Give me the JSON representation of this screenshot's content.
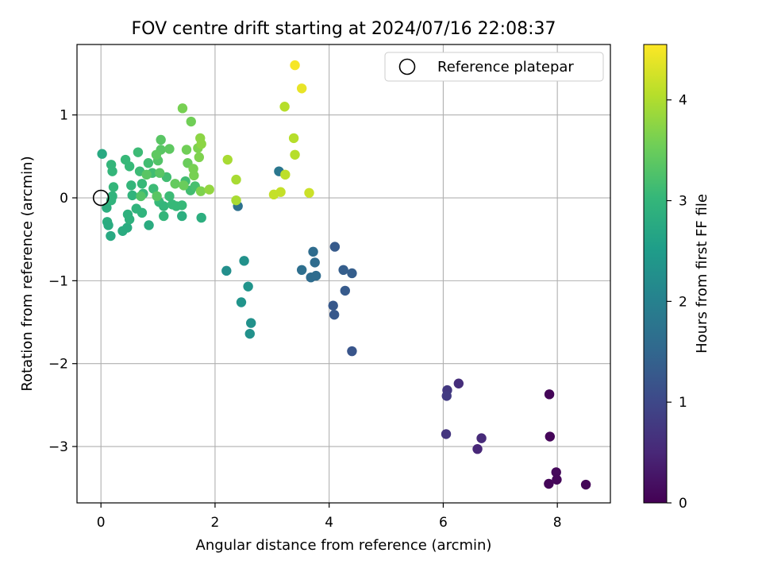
{
  "chart_data": {
    "type": "scatter",
    "title": "FOV centre drift starting at 2024/07/16 22:08:37",
    "xlabel": "Angular distance from reference (arcmin)",
    "ylabel": "Rotation from reference (arcmin)",
    "xlim": [
      -0.42,
      8.93
    ],
    "ylim": [
      -3.68,
      1.85
    ],
    "xticks": [
      0,
      2,
      4,
      6,
      8
    ],
    "yticks": [
      -3,
      -2,
      -1,
      0,
      1
    ],
    "xtick_labels": [
      "0",
      "2",
      "4",
      "6",
      "8"
    ],
    "ytick_labels": [
      "−3",
      "−2",
      "−1",
      "0",
      "1"
    ],
    "grid": true,
    "legend": {
      "position": "top-right",
      "entries": [
        "Reference platepar"
      ]
    },
    "reference_point": {
      "x": 0,
      "y": 0,
      "label": "Reference platepar"
    },
    "colorbar": {
      "label": "Hours from first FF file",
      "colormap": "viridis",
      "range": [
        0,
        4.55
      ],
      "ticks": [
        0,
        1,
        2,
        3,
        4
      ],
      "tick_labels": [
        "0",
        "1",
        "2",
        "3",
        "4"
      ]
    },
    "series": [
      {
        "color_by": "Hours from first FF file",
        "points": [
          {
            "x": 7.86,
            "y": -2.37,
            "c": 0.05
          },
          {
            "x": 7.87,
            "y": -2.88,
            "c": 0.07
          },
          {
            "x": 7.85,
            "y": -3.45,
            "c": 0.05
          },
          {
            "x": 7.98,
            "y": -3.31,
            "c": 0.1
          },
          {
            "x": 7.99,
            "y": -3.4,
            "c": 0.08
          },
          {
            "x": 8.5,
            "y": -3.46,
            "c": 0.05
          },
          {
            "x": 6.27,
            "y": -2.24,
            "c": 0.6
          },
          {
            "x": 6.07,
            "y": -2.32,
            "c": 0.75
          },
          {
            "x": 6.06,
            "y": -2.39,
            "c": 0.8
          },
          {
            "x": 6.05,
            "y": -2.85,
            "c": 0.7
          },
          {
            "x": 6.67,
            "y": -2.9,
            "c": 0.55
          },
          {
            "x": 6.6,
            "y": -3.03,
            "c": 0.5
          },
          {
            "x": 4.1,
            "y": -0.59,
            "c": 1.3
          },
          {
            "x": 4.25,
            "y": -0.87,
            "c": 1.35
          },
          {
            "x": 4.4,
            "y": -0.91,
            "c": 1.35
          },
          {
            "x": 4.28,
            "y": -1.12,
            "c": 1.3
          },
          {
            "x": 4.07,
            "y": -1.3,
            "c": 1.25
          },
          {
            "x": 4.09,
            "y": -1.41,
            "c": 1.25
          },
          {
            "x": 4.4,
            "y": -1.85,
            "c": 1.2
          },
          {
            "x": 3.72,
            "y": -0.65,
            "c": 1.6
          },
          {
            "x": 3.75,
            "y": -0.78,
            "c": 1.6
          },
          {
            "x": 3.52,
            "y": -0.87,
            "c": 1.65
          },
          {
            "x": 3.68,
            "y": -0.96,
            "c": 1.6
          },
          {
            "x": 3.77,
            "y": -0.94,
            "c": 1.6
          },
          {
            "x": 2.4,
            "y": -0.1,
            "c": 1.7
          },
          {
            "x": 3.12,
            "y": 0.32,
            "c": 1.8
          },
          {
            "x": 2.2,
            "y": -0.88,
            "c": 2.25
          },
          {
            "x": 2.51,
            "y": -0.76,
            "c": 2.3
          },
          {
            "x": 2.58,
            "y": -1.07,
            "c": 2.35
          },
          {
            "x": 2.46,
            "y": -1.26,
            "c": 2.35
          },
          {
            "x": 2.63,
            "y": -1.51,
            "c": 2.3
          },
          {
            "x": 2.61,
            "y": -1.64,
            "c": 2.3
          },
          {
            "x": 0.02,
            "y": 0.53,
            "c": 2.75
          },
          {
            "x": 0.1,
            "y": -0.12,
            "c": 2.85
          },
          {
            "x": 0.11,
            "y": -0.29,
            "c": 2.85
          },
          {
            "x": 0.13,
            "y": -0.33,
            "c": 2.8
          },
          {
            "x": 0.17,
            "y": -0.46,
            "c": 2.75
          },
          {
            "x": 0.38,
            "y": -0.4,
            "c": 2.8
          },
          {
            "x": 0.46,
            "y": -0.36,
            "c": 2.8
          },
          {
            "x": 0.84,
            "y": -0.33,
            "c": 2.8
          },
          {
            "x": 1.42,
            "y": -0.22,
            "c": 2.85
          },
          {
            "x": 1.76,
            "y": -0.24,
            "c": 2.85
          },
          {
            "x": 0.47,
            "y": -0.2,
            "c": 2.9
          },
          {
            "x": 0.5,
            "y": -0.26,
            "c": 2.9
          },
          {
            "x": 0.2,
            "y": 0.02,
            "c": 2.95
          },
          {
            "x": 0.18,
            "y": -0.03,
            "c": 2.95
          },
          {
            "x": 0.22,
            "y": 0.13,
            "c": 3.0
          },
          {
            "x": 0.18,
            "y": 0.4,
            "c": 3.0
          },
          {
            "x": 0.2,
            "y": 0.32,
            "c": 3.0
          },
          {
            "x": 0.43,
            "y": 0.46,
            "c": 3.05
          },
          {
            "x": 0.5,
            "y": 0.38,
            "c": 3.05
          },
          {
            "x": 0.53,
            "y": 0.15,
            "c": 3.0
          },
          {
            "x": 0.55,
            "y": 0.03,
            "c": 2.95
          },
          {
            "x": 0.62,
            "y": -0.13,
            "c": 2.95
          },
          {
            "x": 0.72,
            "y": -0.18,
            "c": 2.95
          },
          {
            "x": 0.65,
            "y": 0.55,
            "c": 3.1
          },
          {
            "x": 0.68,
            "y": 0.32,
            "c": 3.1
          },
          {
            "x": 0.72,
            "y": 0.17,
            "c": 3.05
          },
          {
            "x": 0.74,
            "y": 0.05,
            "c": 3.05
          },
          {
            "x": 0.83,
            "y": 0.42,
            "c": 3.15
          },
          {
            "x": 0.9,
            "y": 0.3,
            "c": 3.15
          },
          {
            "x": 0.92,
            "y": 0.11,
            "c": 3.1
          },
          {
            "x": 1.02,
            "y": -0.05,
            "c": 3.05
          },
          {
            "x": 1.1,
            "y": -0.22,
            "c": 3.0
          },
          {
            "x": 1.1,
            "y": -0.1,
            "c": 3.0
          },
          {
            "x": 1.15,
            "y": 0.25,
            "c": 3.15
          },
          {
            "x": 1.2,
            "y": 0.02,
            "c": 3.1
          },
          {
            "x": 1.25,
            "y": -0.08,
            "c": 3.05
          },
          {
            "x": 1.32,
            "y": -0.1,
            "c": 3.05
          },
          {
            "x": 1.42,
            "y": -0.09,
            "c": 3.05
          },
          {
            "x": 1.48,
            "y": 0.2,
            "c": 3.15
          },
          {
            "x": 1.57,
            "y": 0.09,
            "c": 3.15
          },
          {
            "x": 1.65,
            "y": 0.14,
            "c": 3.2
          },
          {
            "x": 1.0,
            "y": 0.45,
            "c": 3.3
          },
          {
            "x": 1.05,
            "y": 0.7,
            "c": 3.35
          },
          {
            "x": 1.05,
            "y": 0.58,
            "c": 3.35
          },
          {
            "x": 1.2,
            "y": 0.59,
            "c": 3.4
          },
          {
            "x": 0.97,
            "y": 0.52,
            "c": 3.4
          },
          {
            "x": 1.03,
            "y": 0.3,
            "c": 3.35
          },
          {
            "x": 0.8,
            "y": 0.28,
            "c": 3.35
          },
          {
            "x": 0.98,
            "y": 0.02,
            "c": 3.35
          },
          {
            "x": 0.7,
            "y": 0.02,
            "c": 3.3
          },
          {
            "x": 1.3,
            "y": 0.17,
            "c": 3.45
          },
          {
            "x": 1.45,
            "y": 0.15,
            "c": 3.5
          },
          {
            "x": 1.52,
            "y": 0.42,
            "c": 3.5
          },
          {
            "x": 1.5,
            "y": 0.58,
            "c": 3.55
          },
          {
            "x": 1.58,
            "y": 0.92,
            "c": 3.55
          },
          {
            "x": 1.43,
            "y": 1.08,
            "c": 3.6
          },
          {
            "x": 1.62,
            "y": 0.35,
            "c": 3.6
          },
          {
            "x": 1.63,
            "y": 0.27,
            "c": 3.6
          },
          {
            "x": 1.7,
            "y": 0.6,
            "c": 3.65
          },
          {
            "x": 1.72,
            "y": 0.49,
            "c": 3.65
          },
          {
            "x": 1.75,
            "y": 0.08,
            "c": 3.65
          },
          {
            "x": 1.74,
            "y": 0.72,
            "c": 3.75
          },
          {
            "x": 1.76,
            "y": 0.65,
            "c": 3.75
          },
          {
            "x": 1.9,
            "y": 0.1,
            "c": 3.8
          },
          {
            "x": 2.22,
            "y": 0.46,
            "c": 3.95
          },
          {
            "x": 2.37,
            "y": 0.22,
            "c": 3.95
          },
          {
            "x": 2.37,
            "y": -0.03,
            "c": 3.95
          },
          {
            "x": 3.22,
            "y": 1.1,
            "c": 4.05
          },
          {
            "x": 3.38,
            "y": 0.72,
            "c": 4.05
          },
          {
            "x": 3.4,
            "y": 0.52,
            "c": 4.05
          },
          {
            "x": 3.23,
            "y": 0.28,
            "c": 4.1
          },
          {
            "x": 3.15,
            "y": 0.07,
            "c": 4.15
          },
          {
            "x": 3.03,
            "y": 0.04,
            "c": 4.15
          },
          {
            "x": 3.65,
            "y": 0.06,
            "c": 4.2
          },
          {
            "x": 3.52,
            "y": 1.32,
            "c": 4.4
          },
          {
            "x": 3.4,
            "y": 1.6,
            "c": 4.5
          }
        ]
      }
    ]
  }
}
